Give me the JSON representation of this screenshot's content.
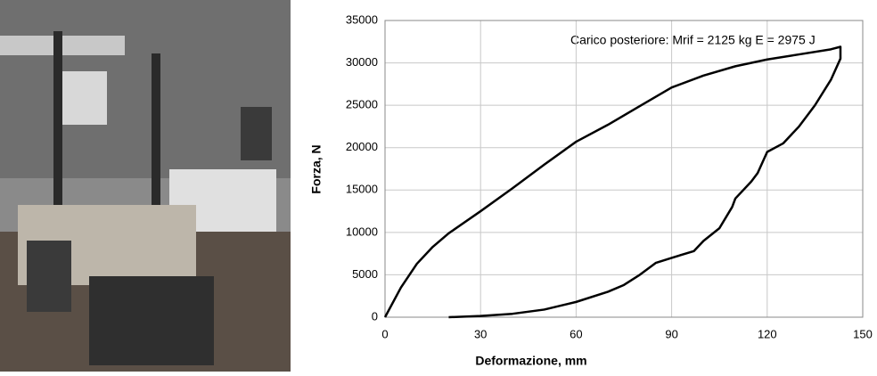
{
  "chart_data": {
    "type": "line",
    "annotation": "Carico posteriore:   Mrif = 2125 kg   E = 2975 J",
    "xlabel": "Deformazione, mm",
    "ylabel": "Forza, N",
    "x": [
      0,
      5,
      10,
      15,
      20,
      30,
      40,
      50,
      60,
      70,
      80,
      90,
      100,
      110,
      120,
      130,
      140,
      143,
      143,
      140,
      135,
      130,
      125,
      120,
      117,
      115,
      110,
      109,
      105,
      100,
      97,
      90,
      85,
      80,
      75,
      70,
      60,
      50,
      40,
      30,
      20
    ],
    "series": [
      {
        "name": "Carico posteriore",
        "color": "#000000",
        "values": [
          0,
          3500,
          6300,
          8300,
          9900,
          12500,
          15200,
          18000,
          20700,
          22700,
          24900,
          27100,
          28500,
          29600,
          30400,
          31000,
          31600,
          31900,
          30500,
          28000,
          25000,
          22500,
          20500,
          19500,
          17000,
          16000,
          14000,
          13000,
          10500,
          9000,
          7800,
          7000,
          6400,
          5000,
          3800,
          3000,
          1800,
          900,
          400,
          150,
          0
        ]
      }
    ],
    "xlim": [
      0,
      150
    ],
    "xticks": [
      0,
      30,
      60,
      90,
      120,
      150
    ],
    "ylim": [
      0,
      35000
    ],
    "yticks": [
      0,
      5000,
      10000,
      15000,
      20000,
      25000,
      30000,
      35000
    ],
    "grid": true
  }
}
